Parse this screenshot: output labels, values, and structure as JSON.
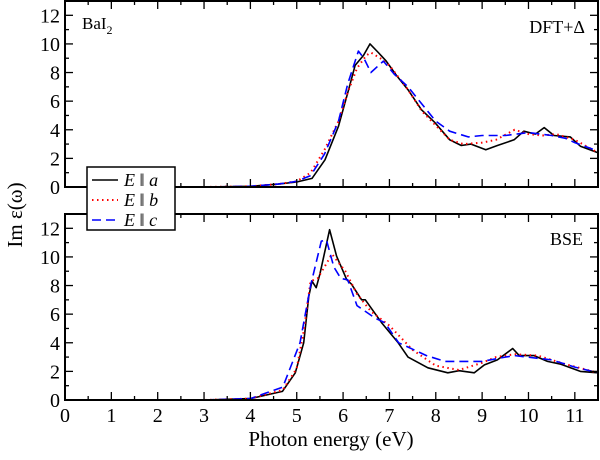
{
  "chart_data": [
    {
      "type": "line",
      "panel_label": "DFT+Δ",
      "material_label": "BaI",
      "material_subscript": "2",
      "xlabel": "Photon energy (eV)",
      "ylabel": "Im ε(ω)",
      "xlim": [
        0,
        11.5
      ],
      "ylim": [
        0,
        13
      ],
      "xticks": [
        0,
        1,
        2,
        3,
        4,
        5,
        6,
        7,
        8,
        9,
        10,
        11
      ],
      "yticks": [
        0,
        2,
        4,
        6,
        8,
        10,
        12
      ],
      "series": [
        {
          "name": "E || a",
          "color": "#000000",
          "style": "solid",
          "x": [
            0,
            3,
            4,
            4.6,
            5.0,
            5.33,
            5.61,
            5.9,
            6.12,
            6.26,
            6.44,
            6.58,
            6.76,
            6.93,
            7.15,
            7.4,
            7.69,
            7.98,
            8.3,
            8.55,
            8.76,
            9.08,
            9.33,
            9.69,
            9.9,
            10.15,
            10.34,
            10.55,
            10.9,
            11.12,
            11.5
          ],
          "y": [
            0,
            0,
            0.05,
            0.2,
            0.35,
            0.6,
            1.9,
            4.25,
            6.8,
            8.5,
            9.2,
            10.0,
            9.4,
            8.8,
            7.8,
            6.8,
            5.4,
            4.5,
            3.3,
            2.9,
            3.0,
            2.6,
            2.9,
            3.3,
            3.9,
            3.7,
            4.15,
            3.6,
            3.5,
            2.85,
            2.4
          ]
        },
        {
          "name": "E || b",
          "color": "#ff0000",
          "style": "dotted",
          "x": [
            0,
            3,
            4,
            4.6,
            5.0,
            5.3,
            5.6,
            5.9,
            6.1,
            6.3,
            6.5,
            6.6,
            6.8,
            7.0,
            7.4,
            7.7,
            8.0,
            8.3,
            8.6,
            9.0,
            9.3,
            9.7,
            10.0,
            10.3,
            10.6,
            11.0,
            11.5
          ],
          "y": [
            0,
            0,
            0.05,
            0.2,
            0.4,
            1.0,
            2.6,
            4.6,
            6.6,
            8.3,
            9.2,
            9.4,
            9.0,
            8.5,
            6.8,
            5.3,
            4.3,
            3.3,
            3.0,
            3.1,
            3.3,
            4.0,
            3.7,
            3.6,
            3.7,
            3.3,
            2.4
          ]
        },
        {
          "name": "E || c",
          "color": "#0000ff",
          "style": "dashed",
          "x": [
            0,
            3,
            4,
            4.6,
            5.0,
            5.3,
            5.6,
            5.9,
            6.1,
            6.33,
            6.45,
            6.6,
            6.87,
            7.1,
            7.4,
            7.75,
            8.0,
            8.3,
            8.7,
            9.0,
            9.5,
            10.0,
            10.5,
            10.8,
            11.0,
            11.5
          ],
          "y": [
            0,
            0,
            0.05,
            0.2,
            0.4,
            0.8,
            2.3,
            4.6,
            7.2,
            9.5,
            9.0,
            8.0,
            8.8,
            7.9,
            7.0,
            5.6,
            4.6,
            3.9,
            3.5,
            3.6,
            3.6,
            3.8,
            3.6,
            3.4,
            3.1,
            2.5
          ]
        }
      ]
    },
    {
      "type": "line",
      "panel_label": "BSE",
      "xlabel": "Photon energy (eV)",
      "ylabel": "Im ε(ω)",
      "xlim": [
        0,
        11.5
      ],
      "ylim": [
        0,
        13
      ],
      "xticks": [
        0,
        1,
        2,
        3,
        4,
        5,
        6,
        7,
        8,
        9,
        10,
        11
      ],
      "yticks": [
        0,
        2,
        4,
        6,
        8,
        10,
        12
      ],
      "series": [
        {
          "name": "E || a",
          "color": "#000000",
          "style": "solid",
          "x": [
            0,
            3,
            4,
            4.69,
            4.97,
            5.15,
            5.26,
            5.33,
            5.42,
            5.5,
            5.71,
            5.86,
            6.08,
            6.18,
            6.4,
            6.48,
            6.83,
            7.19,
            7.4,
            7.83,
            8.26,
            8.5,
            8.83,
            9.05,
            9.33,
            9.66,
            9.8,
            10.12,
            10.41,
            10.7,
            11.12,
            11.5
          ],
          "y": [
            0,
            0,
            0.1,
            0.6,
            1.9,
            4.0,
            7.25,
            8.3,
            7.85,
            8.8,
            11.9,
            10.05,
            8.4,
            8.1,
            7.0,
            7.0,
            5.4,
            4.0,
            3.0,
            2.25,
            1.9,
            2.05,
            1.9,
            2.45,
            2.8,
            3.6,
            3.1,
            3.1,
            2.7,
            2.5,
            2.0,
            1.9
          ]
        },
        {
          "name": "E || b",
          "color": "#ff0000",
          "style": "dotted",
          "x": [
            0,
            3,
            4,
            4.7,
            5.0,
            5.15,
            5.3,
            5.45,
            5.6,
            5.76,
            5.9,
            6.05,
            6.3,
            6.6,
            7.0,
            7.5,
            8.0,
            8.5,
            9.0,
            9.3,
            9.7,
            10.2,
            10.8,
            11.5
          ],
          "y": [
            0,
            0,
            0.1,
            0.7,
            2.2,
            4.8,
            8.3,
            8.5,
            9.3,
            10.2,
            9.6,
            9.0,
            7.4,
            6.2,
            5.2,
            3.5,
            2.4,
            2.1,
            2.6,
            3.0,
            3.2,
            3.1,
            2.5,
            1.9
          ]
        },
        {
          "name": "E || c",
          "color": "#0000ff",
          "style": "dashed",
          "x": [
            0,
            3,
            4,
            4.7,
            5.07,
            5.3,
            5.53,
            5.64,
            5.8,
            5.95,
            6.1,
            6.3,
            6.7,
            6.9,
            7.2,
            7.8,
            8.2,
            9.0,
            9.5,
            9.7,
            10.5,
            11.0,
            11.5
          ],
          "y": [
            0,
            0,
            0.1,
            0.9,
            4.0,
            8.0,
            11.1,
            11.2,
            9.3,
            8.5,
            8.4,
            6.6,
            5.7,
            5.4,
            4.0,
            3.1,
            2.7,
            2.7,
            3.0,
            3.1,
            2.8,
            2.3,
            1.9
          ]
        }
      ]
    }
  ]
}
